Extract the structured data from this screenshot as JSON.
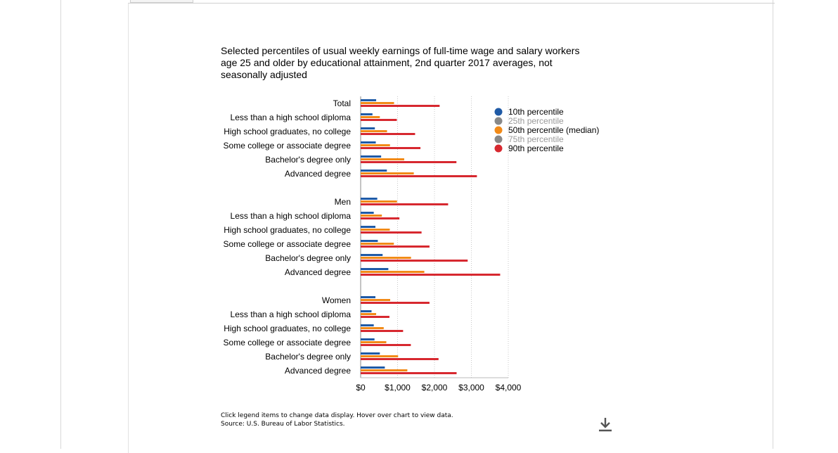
{
  "chart_data": {
    "type": "bar",
    "orientation": "horizontal",
    "title": "Selected percentiles of usual weekly earnings of full-time wage and salary workers age 25 and older by educational attainment, 2nd quarter 2017 averages, not seasonally adjusted",
    "xlabel": "",
    "ylabel": "",
    "xlim": [
      0,
      4000
    ],
    "x_ticks": [
      "$0",
      "$1,000",
      "$2,000",
      "$3,000",
      "$4,000"
    ],
    "grid": "vertical dotted",
    "legend_position": "right",
    "categories": [
      "Total",
      "Less than a high school diploma",
      "High school graduates, no college",
      "Some college or associate degree",
      "Bachelor's degree only",
      "Advanced degree",
      "Men",
      "Less than a high school diploma",
      "High school graduates, no college",
      "Some college or associate degree",
      "Bachelor's degree only",
      "Advanced degree",
      "Women",
      "Less than a high school diploma",
      "High school graduates, no college",
      "Some college or associate degree",
      "Bachelor's degree only",
      "Advanced degree"
    ],
    "series": [
      {
        "name": "10th percentile",
        "color": "#1f5aa6",
        "visible": true,
        "values": [
          420,
          320,
          385,
          410,
          555,
          710,
          450,
          355,
          400,
          465,
          595,
          750,
          400,
          295,
          355,
          375,
          520,
          655
        ]
      },
      {
        "name": "25th percentile",
        "color": "#888888",
        "visible": false,
        "values": [
          null,
          null,
          null,
          null,
          null,
          null,
          null,
          null,
          null,
          null,
          null,
          null,
          null,
          null,
          null,
          null,
          null,
          null
        ]
      },
      {
        "name": "50th percentile (median)",
        "color": "#f28a17",
        "visible": true,
        "values": [
          905,
          520,
          715,
          795,
          1180,
          1440,
          985,
          575,
          790,
          900,
          1365,
          1725,
          800,
          420,
          625,
          695,
          1015,
          1265
        ]
      },
      {
        "name": "75th percentile",
        "color": "#888888",
        "visible": false,
        "values": [
          null,
          null,
          null,
          null,
          null,
          null,
          null,
          null,
          null,
          null,
          null,
          null,
          null,
          null,
          null,
          null,
          null,
          null
        ]
      },
      {
        "name": "90th percentile",
        "color": "#d7282f",
        "visible": true,
        "values": [
          2140,
          980,
          1475,
          1620,
          2595,
          3150,
          2370,
          1050,
          1650,
          1865,
          2900,
          3780,
          1865,
          780,
          1150,
          1360,
          2110,
          2600
        ]
      }
    ]
  },
  "legend": [
    {
      "label": "10th percentile",
      "color": "#1f5aa6",
      "active": true
    },
    {
      "label": "25th percentile",
      "color": "#888888",
      "active": false
    },
    {
      "label": "50th percentile (median)",
      "color": "#f28a17",
      "active": true
    },
    {
      "label": "75th percentile",
      "color": "#888888",
      "active": false
    },
    {
      "label": "90th percentile",
      "color": "#d7282f",
      "active": true
    }
  ],
  "footnotes": {
    "instructions": "Click legend items to change data display. Hover over chart to view data.",
    "source": "Source: U.S. Bureau of Labor Statistics."
  },
  "icons": {
    "download": "download-icon"
  },
  "colors": {
    "active_text": "#000000",
    "inactive_text": "#999999",
    "grid": "#c8c8c8"
  }
}
